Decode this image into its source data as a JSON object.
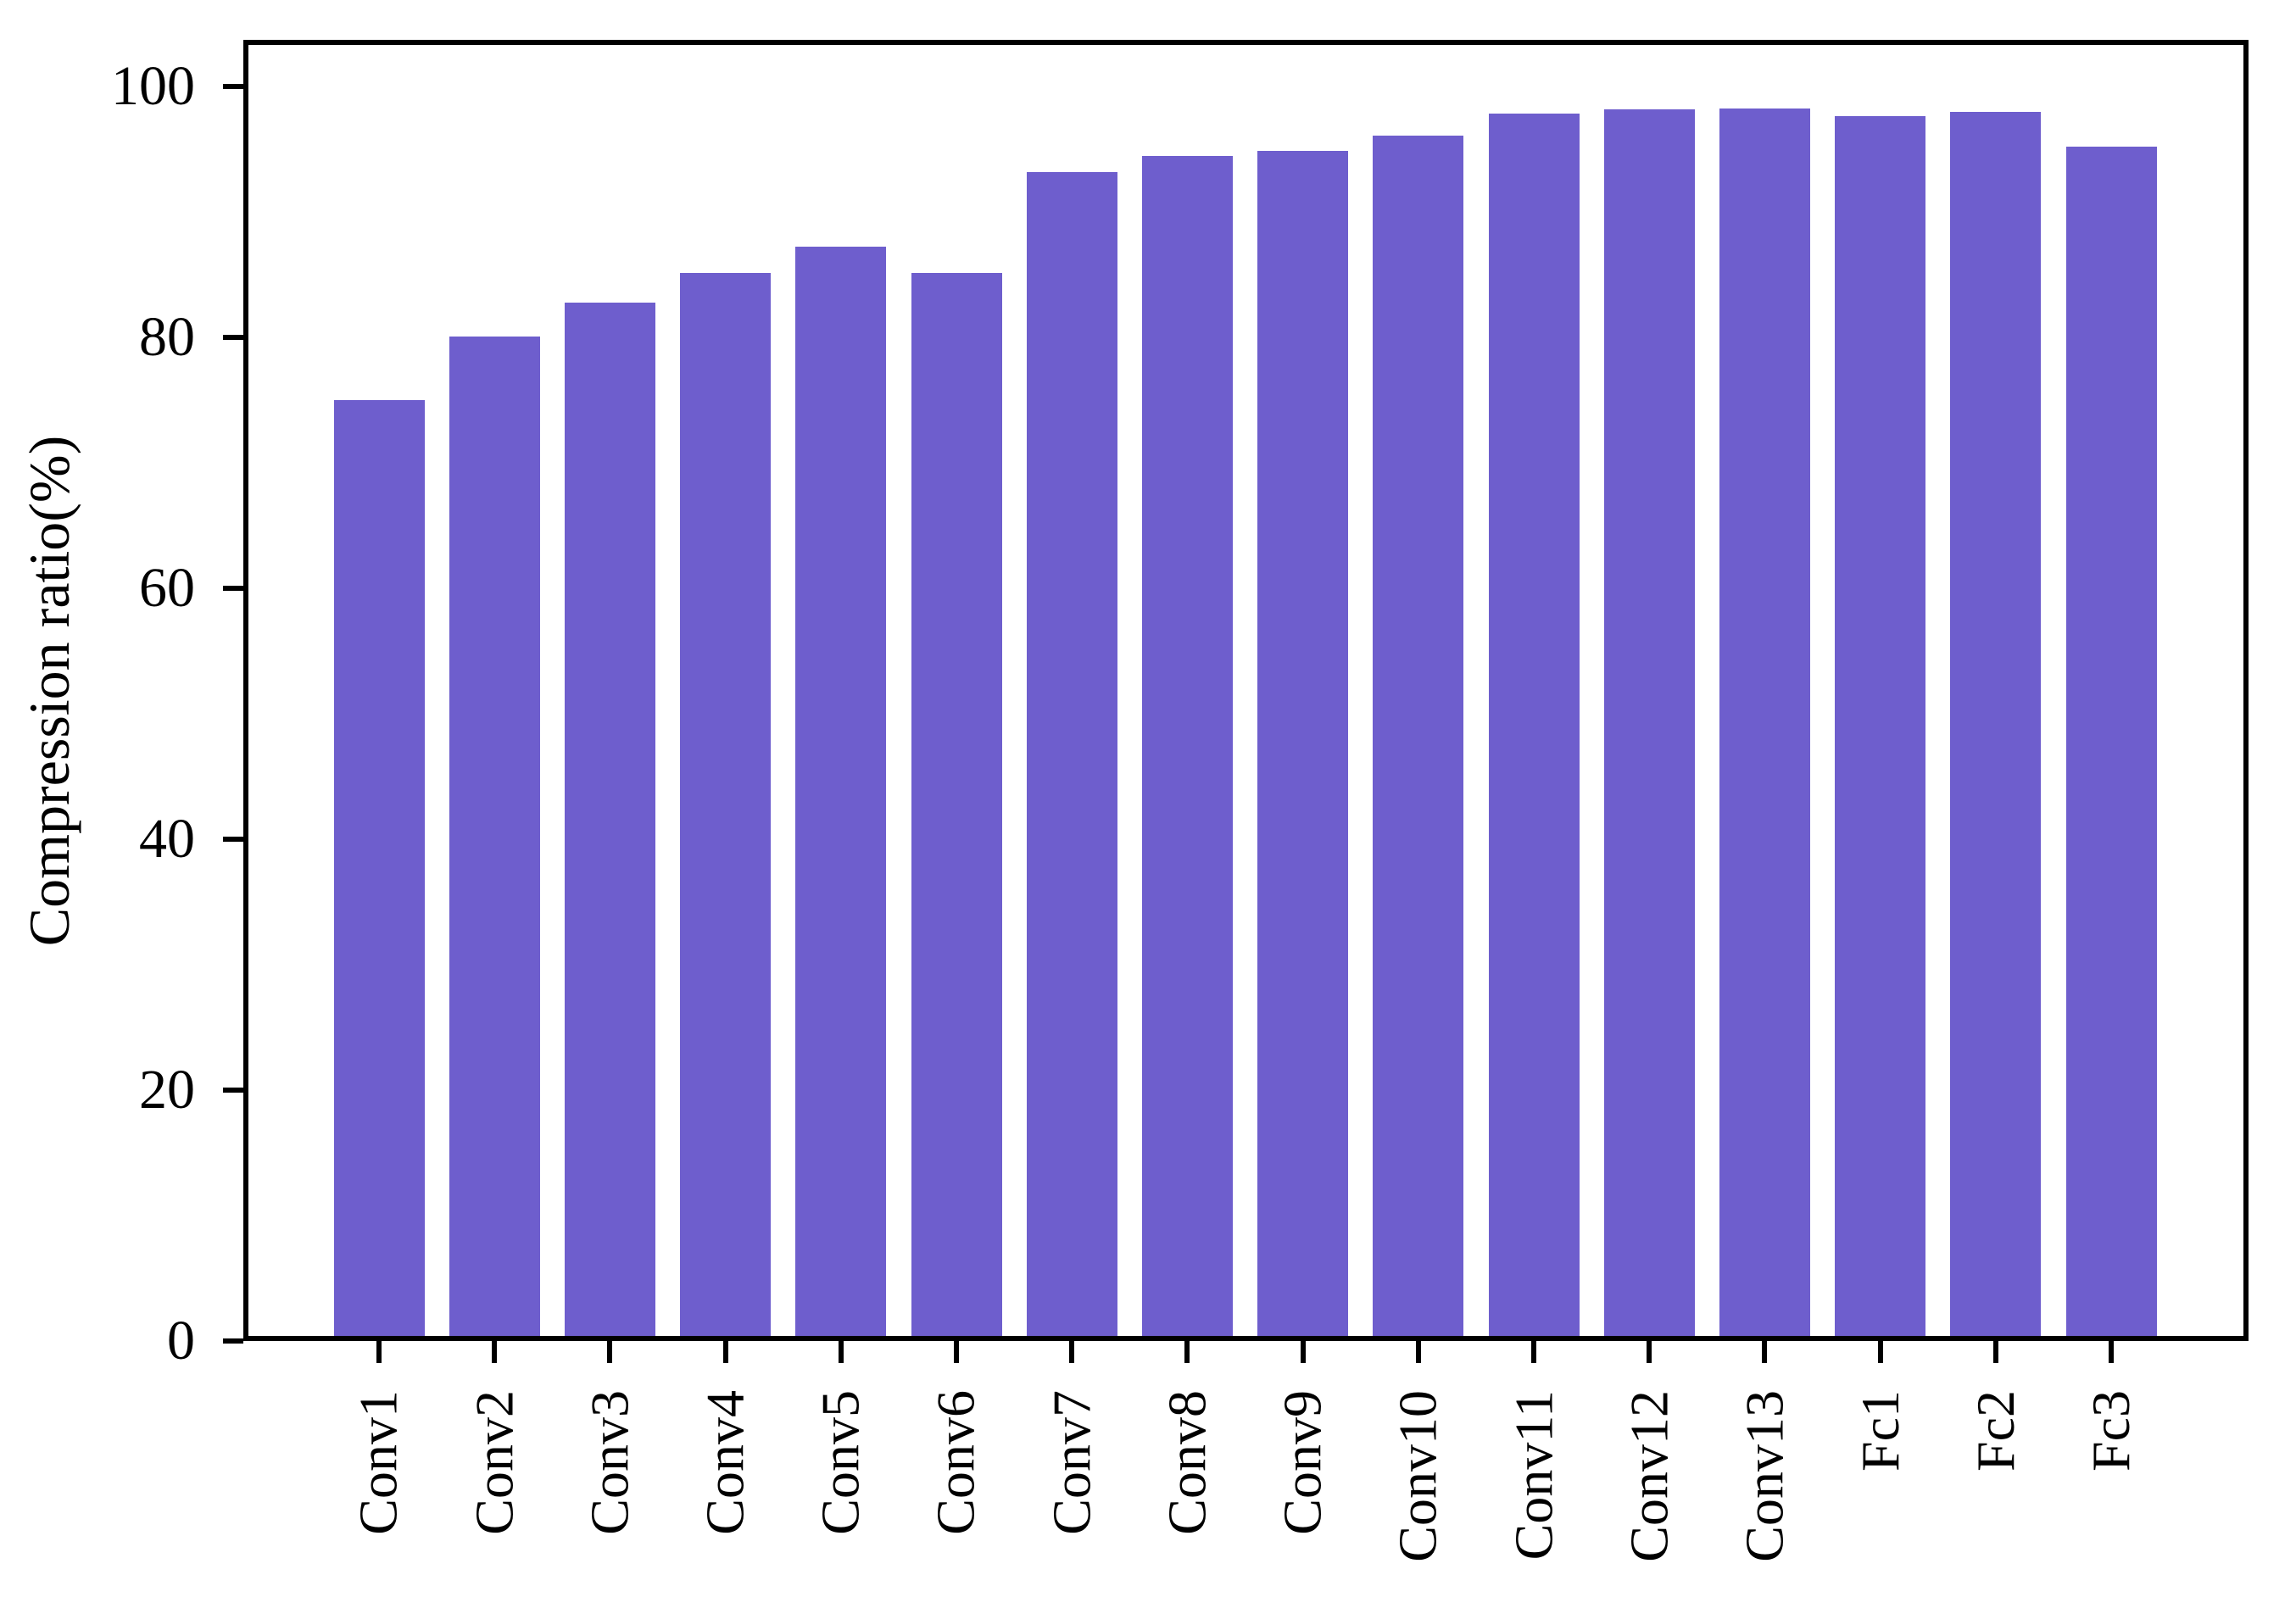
{
  "figure": {
    "background": "#ffffff"
  },
  "chart_data": {
    "type": "bar",
    "categories": [
      "Conv1",
      "Conv2",
      "Conv3",
      "Conv4",
      "Conv5",
      "Conv6",
      "Conv7",
      "Conv8",
      "Conv9",
      "Conv10",
      "Conv11",
      "Conv12",
      "Conv13",
      "Fc1",
      "Fc2",
      "Fc3"
    ],
    "values": [
      75.2,
      80.3,
      83.0,
      85.4,
      87.5,
      85.4,
      93.5,
      94.8,
      95.2,
      96.4,
      98.2,
      98.5,
      98.6,
      98.0,
      98.3,
      95.5
    ],
    "title": "",
    "xlabel": "",
    "ylabel": "Compression ratio(%)",
    "yticks": [
      0,
      20,
      40,
      60,
      80,
      100
    ],
    "ylim": [
      0,
      103.7
    ],
    "grid": false,
    "legend_position": "none",
    "bar_color": "#6e5ecd",
    "axis_color": "#000000",
    "tick_label_color": "#000000"
  }
}
